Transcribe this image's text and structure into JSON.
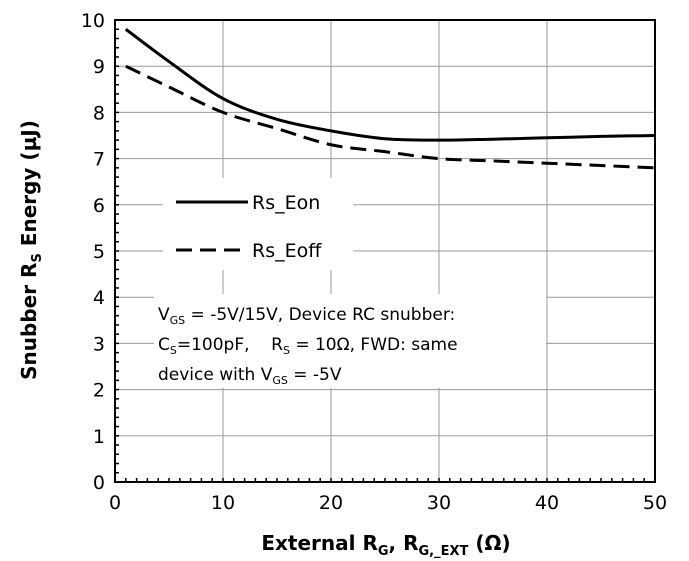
{
  "chart_data": {
    "type": "line",
    "xlabel": {
      "main": "External R",
      "sub1": "G",
      "sep": ", R",
      "sub2": "G,_EXT",
      "tail": " (Ω)"
    },
    "ylabel": {
      "main": "Snubber R",
      "sub": "S",
      "tail": " Energy (µJ)"
    },
    "xlim": [
      0,
      50
    ],
    "ylim": [
      0,
      10
    ],
    "x_ticks": [
      0,
      10,
      20,
      30,
      40,
      50
    ],
    "y_ticks": [
      0,
      1,
      2,
      3,
      4,
      5,
      6,
      7,
      8,
      9,
      10
    ],
    "grid": true,
    "legend_placement": "left-middle",
    "series": [
      {
        "name": "Rs_Eon",
        "style": "solid",
        "x": [
          1,
          5,
          10,
          15,
          20,
          25,
          30,
          35,
          40,
          45,
          50
        ],
        "y": [
          9.8,
          9.1,
          8.3,
          7.85,
          7.6,
          7.43,
          7.4,
          7.42,
          7.45,
          7.48,
          7.5
        ]
      },
      {
        "name": "Rs_Eoff",
        "style": "dashed",
        "x": [
          1,
          5,
          10,
          15,
          20,
          25,
          30,
          35,
          40,
          45,
          50
        ],
        "y": [
          9.0,
          8.55,
          8.0,
          7.65,
          7.3,
          7.15,
          7.0,
          6.95,
          6.9,
          6.85,
          6.8
        ]
      }
    ],
    "annotation": {
      "line1": {
        "a": "V",
        "a_sub": "GS",
        "b": " = -5V/15V, Device RC snubber:"
      },
      "line2": {
        "a": "C",
        "a_sub": "S",
        "b": "=100pF,    R",
        "b_sub": "S",
        "c": " = 10Ω, FWD: same"
      },
      "line3": {
        "a": "device with V",
        "a_sub": "GS",
        "b": " = -5V"
      }
    }
  }
}
